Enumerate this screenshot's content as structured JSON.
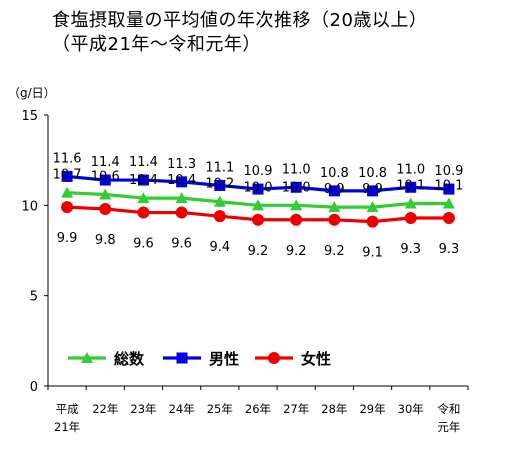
{
  "chart_data": {
    "type": "line",
    "title_lines": [
      "食塩摂取量の平均値の年次推移（20歳以上）",
      "（平成21年～令和元年）"
    ],
    "ylabel": "（g/日）",
    "xlabel": "",
    "ylim": [
      0,
      15
    ],
    "yticks": [
      0,
      5,
      10,
      15
    ],
    "categories": [
      [
        "平成",
        "21年"
      ],
      [
        "22年"
      ],
      [
        "23年"
      ],
      [
        "24年"
      ],
      [
        "25年"
      ],
      [
        "26年"
      ],
      [
        "27年"
      ],
      [
        "28年"
      ],
      [
        "29年"
      ],
      [
        "30年"
      ],
      [
        "令和",
        "元年"
      ]
    ],
    "grid": false,
    "legend_position": "lower-left inside",
    "series": [
      {
        "name": "総数",
        "color": "#33cc33",
        "marker": "triangle",
        "values": [
          10.7,
          10.6,
          10.4,
          10.4,
          10.2,
          10.0,
          10.0,
          9.9,
          9.9,
          10.1,
          10.1
        ],
        "labels": [
          "10.7",
          "10.6",
          "10.4",
          "10.4",
          "10.2",
          "10.0",
          "10.0",
          "9.9",
          "9.9",
          "10.1",
          "10.1"
        ]
      },
      {
        "name": "男性",
        "color": "#0000e6",
        "marker": "square",
        "values": [
          11.6,
          11.4,
          11.4,
          11.3,
          11.1,
          10.9,
          11.0,
          10.8,
          10.8,
          11.0,
          10.9
        ],
        "labels": [
          "11.6",
          "11.4",
          "11.4",
          "11.3",
          "11.1",
          "10.9",
          "11.0",
          "10.8",
          "10.8",
          "11.0",
          "10.9"
        ]
      },
      {
        "name": "女性",
        "color": "#ee0000",
        "marker": "circle",
        "values": [
          9.9,
          9.8,
          9.6,
          9.6,
          9.4,
          9.2,
          9.2,
          9.2,
          9.1,
          9.3,
          9.3
        ],
        "labels": [
          "9.9",
          "9.8",
          "9.6",
          "9.6",
          "9.4",
          "9.2",
          "9.2",
          "9.2",
          "9.1",
          "9.3",
          "9.3"
        ]
      }
    ]
  }
}
